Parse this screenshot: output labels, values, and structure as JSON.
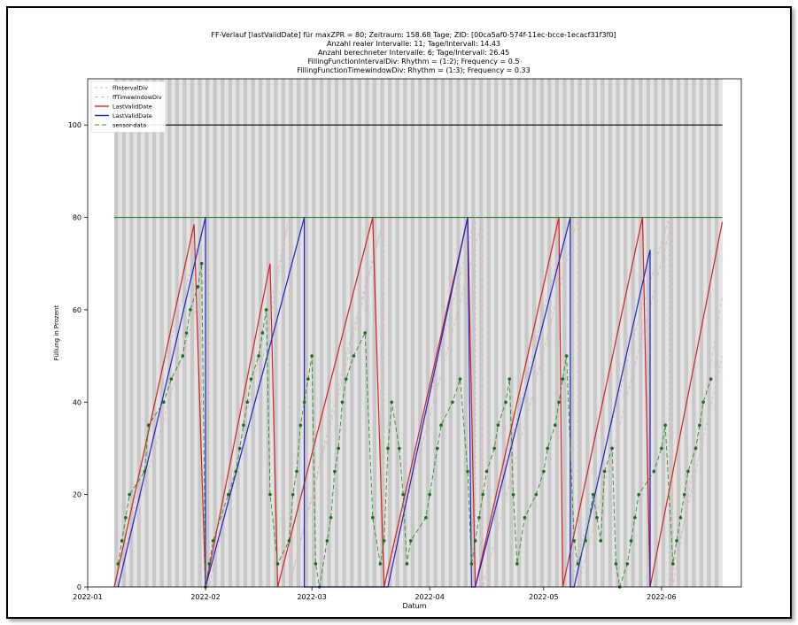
{
  "chart_data": {
    "type": "line",
    "title_lines": [
      "FF-Verlauf [lastValidDate] für maxZPR = 80; Zeitraum: 158.68 Tage; ZID: [00ca5af0-574f-11ec-bcce-1ecacf31f3f0]",
      "Anzahl realer Intervalle: 11; Tage/Intervall: 14.43",
      "Anzahl berechneter Intervalle: 6; Tage/Intervall: 26.45",
      "FillingFunctionIntervalDiv: Rhythm = (1:2); Frequency = 0.5",
      "FillingFunctionTimewindowDiv: Rhythm = (1:3); Frequency = 0.33"
    ],
    "xlabel": "Datum",
    "ylabel": "Füllung in Prozent",
    "xlim": [
      "2022-01-01",
      "2022-06-22"
    ],
    "ylim": [
      0,
      110
    ],
    "x_ticks": [
      "2022-01-01",
      "2022-02-01",
      "2022-03-01",
      "2022-04-01",
      "2022-05-01",
      "2022-06-01"
    ],
    "x_tick_labels": [
      "2022-01",
      "2022-02",
      "2022-03",
      "2022-04",
      "2022-05",
      "2022-06"
    ],
    "y_ticks": [
      0,
      20,
      40,
      60,
      80,
      100
    ],
    "grid": false,
    "legend_position": "top-left",
    "background_bands": {
      "colors": [
        "#c8c8c8",
        "#e3e3e3"
      ],
      "start": "2022-01-08",
      "end": "2022-06-17"
    },
    "hlines": [
      {
        "y": 100,
        "color": "#000000",
        "start": "2022-01-08",
        "end": "2022-06-17"
      },
      {
        "y": 80,
        "color": "#2a7a2a",
        "start": "2022-01-08",
        "end": "2022-06-17"
      }
    ],
    "series": [
      {
        "name": "ffIntervalDiv",
        "color": "#bfbfbf",
        "dash": "3,3",
        "style": "line",
        "points": [
          [
            "2022-01-09",
            0
          ],
          [
            "2022-01-20",
            45
          ],
          [
            "2022-02-01",
            80
          ],
          [
            "2022-02-01",
            0
          ],
          [
            "2022-02-14",
            40
          ],
          [
            "2022-02-23",
            80
          ],
          [
            "2022-02-23",
            0
          ],
          [
            "2022-03-10",
            50
          ],
          [
            "2022-03-20",
            80
          ],
          [
            "2022-03-20",
            0
          ],
          [
            "2022-04-05",
            55
          ],
          [
            "2022-04-13",
            80
          ],
          [
            "2022-04-13",
            0
          ],
          [
            "2022-05-01",
            60
          ],
          [
            "2022-05-08",
            80
          ],
          [
            "2022-05-08",
            0
          ],
          [
            "2022-05-25",
            55
          ],
          [
            "2022-06-03",
            80
          ],
          [
            "2022-06-03",
            0
          ],
          [
            "2022-06-17",
            50
          ]
        ]
      },
      {
        "name": "ffTimewindowDiv",
        "color": "#e8b3b3",
        "dash": "4,3",
        "style": "line",
        "points": [
          [
            "2022-01-08",
            0
          ],
          [
            "2022-02-02",
            70
          ],
          [
            "2022-02-02",
            0
          ],
          [
            "2022-02-23",
            80
          ],
          [
            "2022-02-23",
            0
          ],
          [
            "2022-03-20",
            80
          ],
          [
            "2022-03-20",
            0
          ],
          [
            "2022-04-15",
            80
          ],
          [
            "2022-04-15",
            0
          ],
          [
            "2022-05-10",
            80
          ],
          [
            "2022-05-10",
            0
          ],
          [
            "2022-06-04",
            80
          ],
          [
            "2022-06-04",
            0
          ],
          [
            "2022-06-17",
            63
          ]
        ]
      },
      {
        "name": "LastValidDate",
        "color": "#d62020",
        "dash": "",
        "style": "line",
        "points": [
          [
            "2022-01-08",
            0
          ],
          [
            "2022-01-29",
            78.5
          ],
          [
            "2022-02-01",
            0
          ],
          [
            "2022-02-18",
            70
          ],
          [
            "2022-02-20",
            0
          ],
          [
            "2022-03-17",
            80
          ],
          [
            "2022-03-20",
            0
          ],
          [
            "2022-04-11",
            80
          ],
          [
            "2022-04-13",
            0
          ],
          [
            "2022-05-05",
            80
          ],
          [
            "2022-05-06",
            0
          ],
          [
            "2022-05-27",
            80
          ],
          [
            "2022-05-29",
            0
          ],
          [
            "2022-06-17",
            79
          ]
        ]
      },
      {
        "name": "LastValidDate",
        "color": "#2020cc",
        "dash": "",
        "style": "line",
        "points": [
          [
            "2022-01-09",
            0
          ],
          [
            "2022-02-01",
            80
          ],
          [
            "2022-02-01",
            0
          ],
          [
            "2022-02-27",
            80
          ],
          [
            "2022-02-27",
            0
          ],
          [
            "2022-03-20",
            0
          ],
          [
            "2022-03-21",
            0
          ],
          [
            "2022-04-11",
            80
          ],
          [
            "2022-04-12",
            0
          ],
          [
            "2022-04-13",
            0
          ],
          [
            "2022-05-08",
            80
          ],
          [
            "2022-05-08",
            0
          ],
          [
            "2022-05-09",
            0
          ],
          [
            "2022-05-29",
            73
          ],
          [
            "2022-05-29",
            0
          ]
        ]
      },
      {
        "name": "sensor-data",
        "color": "#2e8b2e",
        "dash": "5,3",
        "style": "line-marker",
        "points": [
          [
            "2022-01-09",
            5
          ],
          [
            "2022-01-10",
            10
          ],
          [
            "2022-01-11",
            15
          ],
          [
            "2022-01-12",
            20
          ],
          [
            "2022-01-16",
            25
          ],
          [
            "2022-01-17",
            35
          ],
          [
            "2022-01-21",
            40
          ],
          [
            "2022-01-23",
            45
          ],
          [
            "2022-01-26",
            50
          ],
          [
            "2022-01-27",
            55
          ],
          [
            "2022-01-28",
            60
          ],
          [
            "2022-01-30",
            65
          ],
          [
            "2022-01-31",
            70
          ],
          [
            "2022-02-01",
            0
          ],
          [
            "2022-02-02",
            5
          ],
          [
            "2022-02-03",
            10
          ],
          [
            "2022-02-07",
            20
          ],
          [
            "2022-02-09",
            25
          ],
          [
            "2022-02-10",
            30
          ],
          [
            "2022-02-11",
            35
          ],
          [
            "2022-02-12",
            40
          ],
          [
            "2022-02-13",
            45
          ],
          [
            "2022-02-15",
            50
          ],
          [
            "2022-02-16",
            55
          ],
          [
            "2022-02-17",
            60
          ],
          [
            "2022-02-18",
            20
          ],
          [
            "2022-02-20",
            5
          ],
          [
            "2022-02-23",
            10
          ],
          [
            "2022-02-24",
            20
          ],
          [
            "2022-02-25",
            25
          ],
          [
            "2022-02-26",
            35
          ],
          [
            "2022-02-27",
            40
          ],
          [
            "2022-02-28",
            45
          ],
          [
            "2022-03-01",
            50
          ],
          [
            "2022-03-02",
            5
          ],
          [
            "2022-03-03",
            0
          ],
          [
            "2022-03-05",
            10
          ],
          [
            "2022-03-06",
            15
          ],
          [
            "2022-03-07",
            25
          ],
          [
            "2022-03-08",
            30
          ],
          [
            "2022-03-09",
            40
          ],
          [
            "2022-03-10",
            45
          ],
          [
            "2022-03-12",
            50
          ],
          [
            "2022-03-15",
            55
          ],
          [
            "2022-03-17",
            15
          ],
          [
            "2022-03-19",
            5
          ],
          [
            "2022-03-20",
            10
          ],
          [
            "2022-03-21",
            30
          ],
          [
            "2022-03-22",
            40
          ],
          [
            "2022-03-24",
            30
          ],
          [
            "2022-03-25",
            20
          ],
          [
            "2022-03-26",
            5
          ],
          [
            "2022-03-27",
            10
          ],
          [
            "2022-03-31",
            15
          ],
          [
            "2022-04-01",
            20
          ],
          [
            "2022-04-03",
            30
          ],
          [
            "2022-04-04",
            35
          ],
          [
            "2022-04-07",
            40
          ],
          [
            "2022-04-09",
            45
          ],
          [
            "2022-04-11",
            25
          ],
          [
            "2022-04-12",
            5
          ],
          [
            "2022-04-13",
            10
          ],
          [
            "2022-04-14",
            15
          ],
          [
            "2022-04-15",
            20
          ],
          [
            "2022-04-16",
            25
          ],
          [
            "2022-04-18",
            30
          ],
          [
            "2022-04-19",
            35
          ],
          [
            "2022-04-21",
            40
          ],
          [
            "2022-04-22",
            45
          ],
          [
            "2022-04-23",
            20
          ],
          [
            "2022-04-24",
            5
          ],
          [
            "2022-04-26",
            15
          ],
          [
            "2022-04-29",
            20
          ],
          [
            "2022-05-01",
            25
          ],
          [
            "2022-05-02",
            30
          ],
          [
            "2022-05-04",
            35
          ],
          [
            "2022-05-05",
            40
          ],
          [
            "2022-05-06",
            45
          ],
          [
            "2022-05-07",
            50
          ],
          [
            "2022-05-09",
            10
          ],
          [
            "2022-05-10",
            5
          ],
          [
            "2022-05-12",
            10
          ],
          [
            "2022-05-14",
            20
          ],
          [
            "2022-05-15",
            15
          ],
          [
            "2022-05-16",
            10
          ],
          [
            "2022-05-17",
            25
          ],
          [
            "2022-05-19",
            30
          ],
          [
            "2022-05-20",
            5
          ],
          [
            "2022-05-21",
            0
          ],
          [
            "2022-05-23",
            5
          ],
          [
            "2022-05-24",
            10
          ],
          [
            "2022-05-25",
            15
          ],
          [
            "2022-05-26",
            20
          ],
          [
            "2022-05-30",
            25
          ],
          [
            "2022-06-01",
            30
          ],
          [
            "2022-06-02",
            35
          ],
          [
            "2022-06-04",
            5
          ],
          [
            "2022-06-05",
            10
          ],
          [
            "2022-06-06",
            15
          ],
          [
            "2022-06-07",
            20
          ],
          [
            "2022-06-08",
            25
          ],
          [
            "2022-06-10",
            30
          ],
          [
            "2022-06-11",
            35
          ],
          [
            "2022-06-12",
            40
          ],
          [
            "2022-06-14",
            45
          ]
        ]
      }
    ]
  }
}
